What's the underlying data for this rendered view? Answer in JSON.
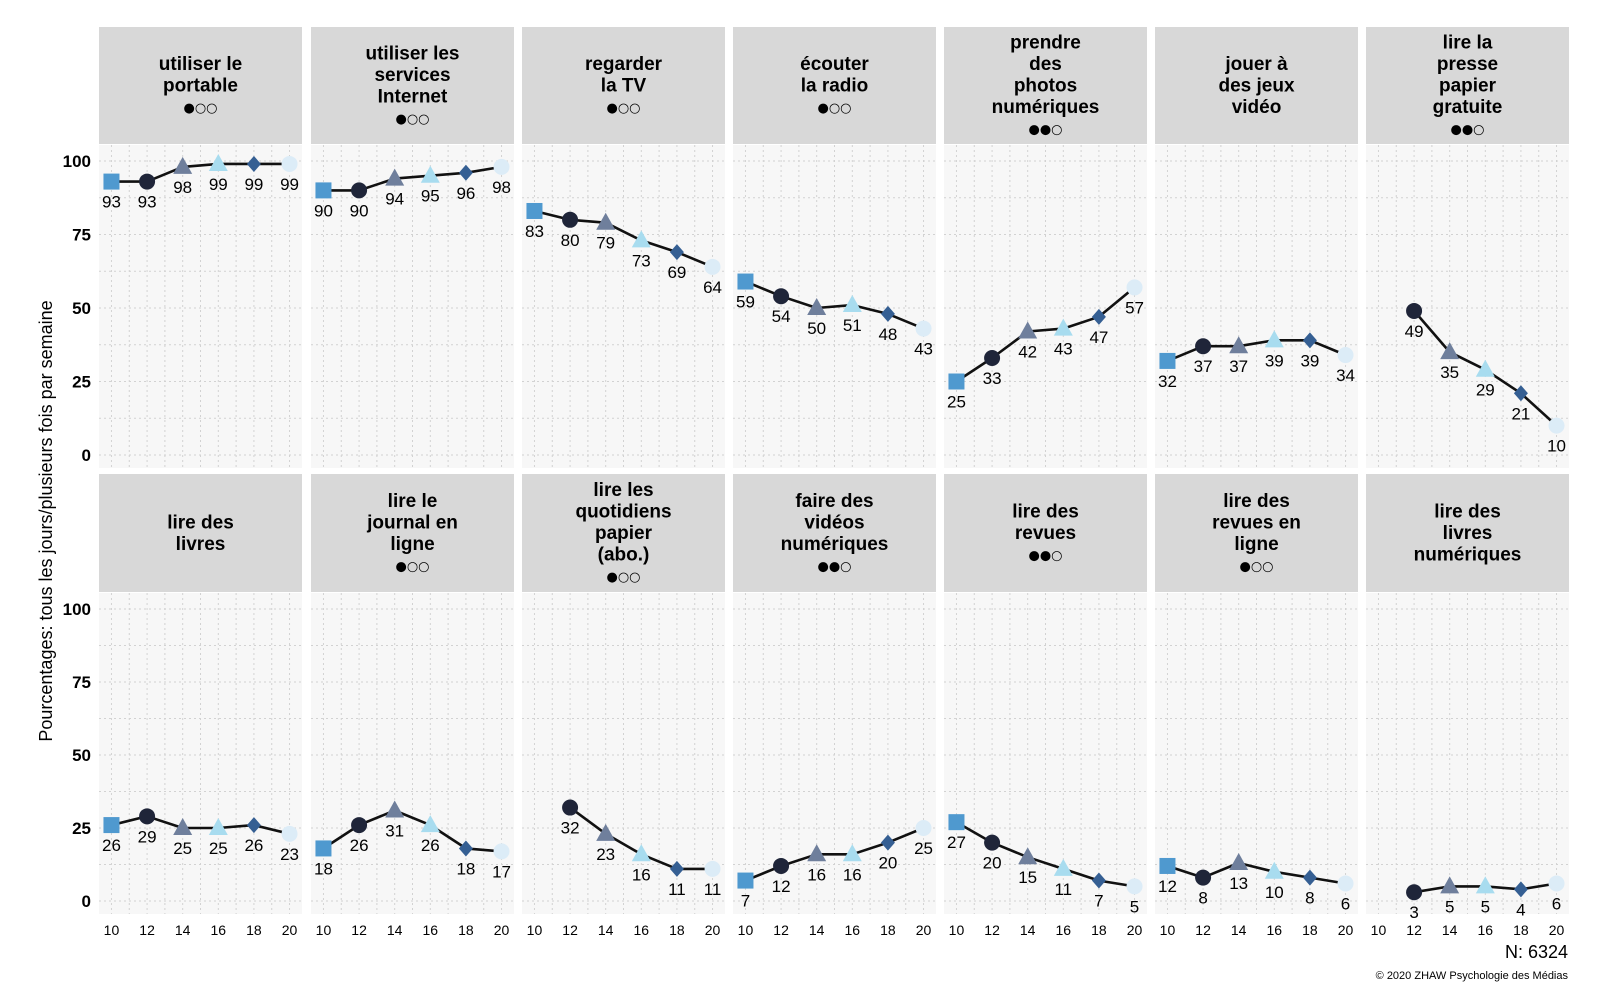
{
  "chart_data": {
    "type": "line",
    "ylabel": "Pourcentages: tous les jours/plusieurs fois par semaine",
    "x_ticks": [
      "10",
      "12",
      "14",
      "16",
      "18",
      "20"
    ],
    "x": [
      10,
      12,
      14,
      16,
      18,
      20
    ],
    "y_ticks": [
      "0",
      "25",
      "50",
      "75",
      "100"
    ],
    "ylim": [
      0,
      100
    ],
    "xlim": [
      9.3,
      20.7
    ],
    "grid": true,
    "layout": "2 rows x 7 facets",
    "marker_colors": [
      "#4f99cf",
      "#1f2539",
      "#6f7f9c",
      "#a8dcef",
      "#355f93",
      "#dcecf7"
    ],
    "line_color": "#111111",
    "panel_bg": "#f7f7f7",
    "strip_bg": "#d8d8d8",
    "panels": [
      {
        "title_lines": [
          "utiliser le",
          "portable"
        ],
        "significance": "●○○",
        "values": [
          93,
          93,
          98,
          99,
          99,
          99
        ],
        "labels": [
          "93",
          "93",
          "98",
          "99",
          "99",
          "99"
        ]
      },
      {
        "title_lines": [
          "utiliser les",
          "services",
          "Internet"
        ],
        "significance": "●○○",
        "values": [
          90,
          90,
          94,
          95,
          96,
          98
        ],
        "labels": [
          "90",
          "90",
          "94",
          "95",
          "96",
          "98"
        ]
      },
      {
        "title_lines": [
          "regarder",
          "la TV"
        ],
        "significance": "●○○",
        "values": [
          83,
          80,
          79,
          73,
          69,
          64
        ],
        "labels": [
          "83",
          "80",
          "79",
          "73",
          "69",
          "64"
        ]
      },
      {
        "title_lines": [
          "écouter",
          "la radio"
        ],
        "significance": "●○○",
        "values": [
          59,
          54,
          50,
          51,
          48,
          43
        ],
        "labels": [
          "59",
          "54",
          "50",
          "51",
          "48",
          "43"
        ]
      },
      {
        "title_lines": [
          "prendre",
          "des",
          "photos",
          "numériques"
        ],
        "significance": "●●○",
        "values": [
          25,
          33,
          42,
          43,
          47,
          57
        ],
        "labels": [
          "25",
          "33",
          "42",
          "43",
          "47",
          "57"
        ]
      },
      {
        "title_lines": [
          "jouer à",
          "des jeux",
          "vidéo"
        ],
        "significance": "",
        "values": [
          32,
          37,
          37,
          39,
          39,
          34
        ],
        "labels": [
          "32",
          "37",
          "37",
          "39",
          "39",
          "34"
        ]
      },
      {
        "title_lines": [
          "lire la",
          "presse",
          "papier",
          "gratuite"
        ],
        "significance": "●●○",
        "values": [
          null,
          49,
          35,
          29,
          21,
          10
        ],
        "labels": [
          "",
          "49",
          "35",
          "29",
          "21",
          "10"
        ]
      },
      {
        "title_lines": [
          "lire des",
          "livres"
        ],
        "significance": "",
        "values": [
          26,
          29,
          25,
          25,
          26,
          23
        ],
        "labels": [
          "26",
          "29",
          "25",
          "25",
          "26",
          "23"
        ]
      },
      {
        "title_lines": [
          "lire le",
          "journal en",
          "ligne"
        ],
        "significance": "●○○",
        "values": [
          18,
          26,
          31,
          26,
          18,
          17
        ],
        "labels": [
          "18",
          "26",
          "31",
          "26",
          "18",
          "17"
        ]
      },
      {
        "title_lines": [
          "lire les",
          "quotidiens",
          "papier",
          "(abo.)"
        ],
        "significance": "●○○",
        "values": [
          null,
          32,
          23,
          16,
          11,
          11
        ],
        "labels": [
          "",
          "32",
          "23",
          "16",
          "11",
          "11"
        ]
      },
      {
        "title_lines": [
          "faire des",
          "vidéos",
          "numériques"
        ],
        "significance": "●●○",
        "values": [
          7,
          12,
          16,
          16,
          20,
          25
        ],
        "labels": [
          "7",
          "12",
          "16",
          "16",
          "20",
          "25"
        ]
      },
      {
        "title_lines": [
          "lire des",
          "revues"
        ],
        "significance": "●●○",
        "values": [
          27,
          20,
          15,
          11,
          7,
          5
        ],
        "labels": [
          "27",
          "20",
          "15",
          "11",
          "7",
          "5"
        ]
      },
      {
        "title_lines": [
          "lire des",
          "revues en",
          "ligne"
        ],
        "significance": "●○○",
        "values": [
          12,
          8,
          13,
          10,
          8,
          6
        ],
        "labels": [
          "12",
          "8",
          "13",
          "10",
          "8",
          "6"
        ]
      },
      {
        "title_lines": [
          "lire des",
          "livres",
          "numériques"
        ],
        "significance": "",
        "values": [
          null,
          3,
          5,
          5,
          4,
          6
        ],
        "labels": [
          "",
          "3",
          "5",
          "5",
          "4",
          "6"
        ]
      }
    ]
  },
  "footer": {
    "n_label": "N: 6324",
    "credit": "© 2020 ZHAW Psychologie des Médias"
  }
}
